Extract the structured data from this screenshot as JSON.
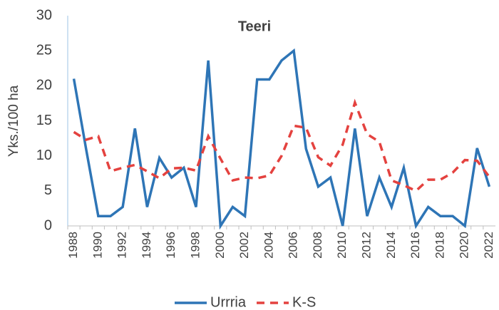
{
  "chart_data": {
    "type": "line",
    "title": "Teeri",
    "y_label": "Yks./100 ha",
    "categories": [
      1988,
      null,
      1990,
      null,
      1992,
      null,
      1994,
      null,
      1996,
      null,
      1998,
      null,
      2000,
      null,
      2002,
      null,
      2004,
      null,
      2006,
      null,
      2008,
      null,
      2010,
      null,
      2012,
      null,
      2014,
      null,
      2016,
      null,
      2018,
      null,
      2020,
      null,
      2022
    ],
    "series": [
      {
        "name": "Urrria",
        "color": "#2e75b6",
        "dash": false,
        "values": [
          21,
          11,
          1.4,
          1.4,
          2.7,
          13.9,
          2.7,
          9.7,
          6.9,
          8.3,
          2.7,
          23.6,
          0,
          2.7,
          1.4,
          20.9,
          20.9,
          23.6,
          25,
          11,
          5.6,
          6.9,
          0,
          13.9,
          1.4,
          6.9,
          2.7,
          8.3,
          0,
          2.7,
          1.4,
          1.4,
          0,
          11.1,
          5.6
        ]
      },
      {
        "name": "K-S",
        "color": "#e4423f",
        "dash": true,
        "values": [
          13.4,
          12.3,
          12.8,
          7.8,
          8.3,
          8.7,
          7.8,
          6.8,
          8.2,
          8.3,
          7.9,
          12.8,
          9.6,
          6.5,
          6.9,
          6.8,
          7.2,
          10,
          14.3,
          14,
          9.8,
          8.6,
          11.6,
          17.6,
          13.1,
          12,
          6.5,
          5.8,
          5,
          6.6,
          6.6,
          7.6,
          9.4,
          9.3,
          7
        ]
      }
    ],
    "ylim": [
      0,
      30
    ],
    "yticks": [
      0,
      5,
      10,
      15,
      20,
      25,
      30
    ],
    "grid": false,
    "legend": "bottom"
  }
}
